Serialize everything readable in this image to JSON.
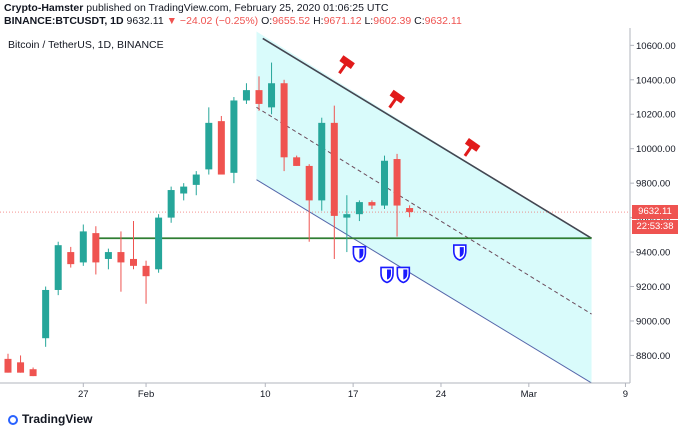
{
  "header": {
    "line1": {
      "author": "Crypto-Hamster",
      "rest": "published on TradingView.com, February 25, 2020 01:06:25 UTC"
    },
    "line2": {
      "symbol": "BINANCE:BTCUSDT, 1D",
      "price": "9632.11",
      "change": "▼ −24.02 (−0.25%)",
      "o_label": "O:",
      "o_value": "9655.52",
      "h_label": "H:",
      "h_value": "9671.12",
      "l_label": "L:",
      "l_value": "9602.39",
      "c_label": "C:",
      "c_value": "9632.11"
    }
  },
  "chart_data": {
    "type": "candlestick",
    "title": "Bitcoin / TetherUS, 1D, BINANCE",
    "y_axis": {
      "ticks": [
        "10600.00",
        "10400.00",
        "10200.00",
        "10000.00",
        "9800.00",
        "9600.00",
        "9400.00",
        "9200.00",
        "9000.00",
        "8800.00"
      ],
      "range": [
        8640,
        10660
      ]
    },
    "x_axis": {
      "ticks": [
        "27",
        "Feb",
        "10",
        "17",
        "24",
        "Mar",
        "9"
      ]
    },
    "last_price_label": "9632.11",
    "countdown_label": "22:53:38",
    "colors": {
      "up": "#26a69a",
      "down": "#ef5350",
      "channel_fill": "#d9fbfb",
      "support": "#2e7d32",
      "trendline": "#434651",
      "marker": "#1a1aff",
      "hammer": "#e11b1b"
    },
    "candles": [
      {
        "o": 8780,
        "h": 8810,
        "l": 8700,
        "c": 8700
      },
      {
        "o": 8760,
        "h": 8800,
        "l": 8700,
        "c": 8700
      },
      {
        "o": 8720,
        "h": 8730,
        "l": 8680,
        "c": 8680
      },
      {
        "o": 8900,
        "h": 9200,
        "l": 8850,
        "c": 9180
      },
      {
        "o": 9180,
        "h": 9460,
        "l": 9150,
        "c": 9440
      },
      {
        "o": 9400,
        "h": 9430,
        "l": 9310,
        "c": 9330
      },
      {
        "o": 9340,
        "h": 9560,
        "l": 9320,
        "c": 9520
      },
      {
        "o": 9510,
        "h": 9550,
        "l": 9270,
        "c": 9340
      },
      {
        "o": 9360,
        "h": 9420,
        "l": 9300,
        "c": 9400
      },
      {
        "o": 9400,
        "h": 9520,
        "l": 9170,
        "c": 9340
      },
      {
        "o": 9360,
        "h": 9580,
        "l": 9300,
        "c": 9320
      },
      {
        "o": 9320,
        "h": 9350,
        "l": 9100,
        "c": 9260
      },
      {
        "o": 9300,
        "h": 9620,
        "l": 9280,
        "c": 9600
      },
      {
        "o": 9600,
        "h": 9780,
        "l": 9570,
        "c": 9760
      },
      {
        "o": 9740,
        "h": 9800,
        "l": 9700,
        "c": 9780
      },
      {
        "o": 9790,
        "h": 9870,
        "l": 9730,
        "c": 9850
      },
      {
        "o": 9880,
        "h": 10240,
        "l": 9850,
        "c": 10150
      },
      {
        "o": 10160,
        "h": 10190,
        "l": 9870,
        "c": 9850
      },
      {
        "o": 9860,
        "h": 10300,
        "l": 9800,
        "c": 10280
      },
      {
        "o": 10280,
        "h": 10380,
        "l": 10260,
        "c": 10340
      },
      {
        "o": 10340,
        "h": 10420,
        "l": 10220,
        "c": 10260
      },
      {
        "o": 10240,
        "h": 10500,
        "l": 10200,
        "c": 10380
      },
      {
        "o": 10380,
        "h": 10400,
        "l": 9870,
        "c": 9950
      },
      {
        "o": 9950,
        "h": 9960,
        "l": 9900,
        "c": 9900
      },
      {
        "o": 9900,
        "h": 9910,
        "l": 9460,
        "c": 9700
      },
      {
        "o": 9700,
        "h": 10180,
        "l": 9640,
        "c": 10150
      },
      {
        "o": 10150,
        "h": 10250,
        "l": 9360,
        "c": 9610
      },
      {
        "o": 9600,
        "h": 9730,
        "l": 9400,
        "c": 9620
      },
      {
        "o": 9620,
        "h": 9700,
        "l": 9580,
        "c": 9690
      },
      {
        "o": 9690,
        "h": 9700,
        "l": 9650,
        "c": 9670
      },
      {
        "o": 9670,
        "h": 9960,
        "l": 9650,
        "c": 9930
      },
      {
        "o": 9940,
        "h": 9970,
        "l": 9490,
        "c": 9670
      },
      {
        "o": 9655.52,
        "h": 9671.12,
        "l": 9602.39,
        "c": 9632.11
      }
    ]
  }
}
